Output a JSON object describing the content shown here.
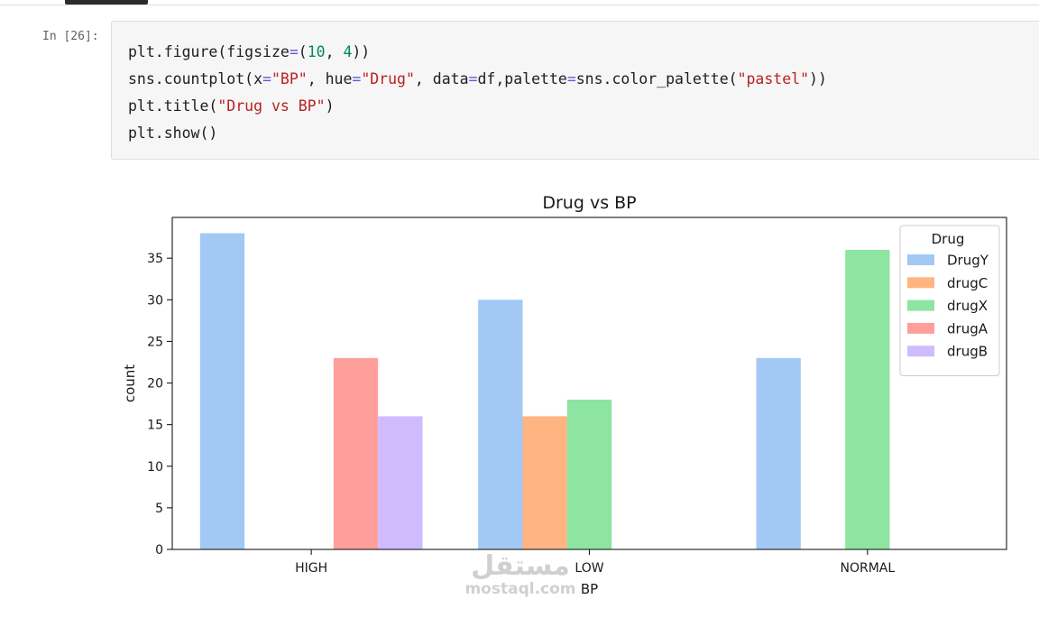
{
  "cell": {
    "prompt": "In [26]:",
    "code_lines": [
      [
        {
          "t": "plt.figure(figsize"
        },
        {
          "t": "=",
          "c": "op"
        },
        {
          "t": "("
        },
        {
          "t": "10",
          "c": "num"
        },
        {
          "t": ", "
        },
        {
          "t": "4",
          "c": "num"
        },
        {
          "t": "))"
        }
      ],
      [
        {
          "t": "sns.countplot(x"
        },
        {
          "t": "=",
          "c": "op"
        },
        {
          "t": "\"BP\"",
          "c": "str"
        },
        {
          "t": ", hue"
        },
        {
          "t": "=",
          "c": "op"
        },
        {
          "t": "\"Drug\"",
          "c": "str"
        },
        {
          "t": ", data"
        },
        {
          "t": "=",
          "c": "op"
        },
        {
          "t": "df,palette"
        },
        {
          "t": "=",
          "c": "op"
        },
        {
          "t": "sns.color_palette("
        },
        {
          "t": "\"pastel\"",
          "c": "str"
        },
        {
          "t": "))"
        }
      ],
      [
        {
          "t": "plt.title("
        },
        {
          "t": "\"Drug vs BP\"",
          "c": "str"
        },
        {
          "t": ")"
        }
      ],
      [
        {
          "t": "plt.show()"
        }
      ]
    ]
  },
  "chart_data": {
    "type": "bar",
    "title": "Drug vs BP",
    "xlabel": "BP",
    "ylabel": "count",
    "categories": [
      "HIGH",
      "LOW",
      "NORMAL"
    ],
    "ylim": [
      0,
      39.9
    ],
    "yticks": [
      0,
      5,
      10,
      15,
      20,
      25,
      30,
      35
    ],
    "legend_title": "Drug",
    "legend_position": "top-right",
    "series": [
      {
        "name": "DrugY",
        "color": "#a1c9f4",
        "values": [
          38,
          30,
          23
        ]
      },
      {
        "name": "drugC",
        "color": "#ffb482",
        "values": [
          0,
          16,
          0
        ]
      },
      {
        "name": "drugX",
        "color": "#8de5a1",
        "values": [
          0,
          18,
          36
        ]
      },
      {
        "name": "drugA",
        "color": "#ff9f9b",
        "values": [
          23,
          0,
          0
        ]
      },
      {
        "name": "drugB",
        "color": "#d0bbff",
        "values": [
          16,
          0,
          0
        ]
      }
    ]
  },
  "watermark": {
    "arabic": "مستقل",
    "latin": "mostaql.com"
  }
}
